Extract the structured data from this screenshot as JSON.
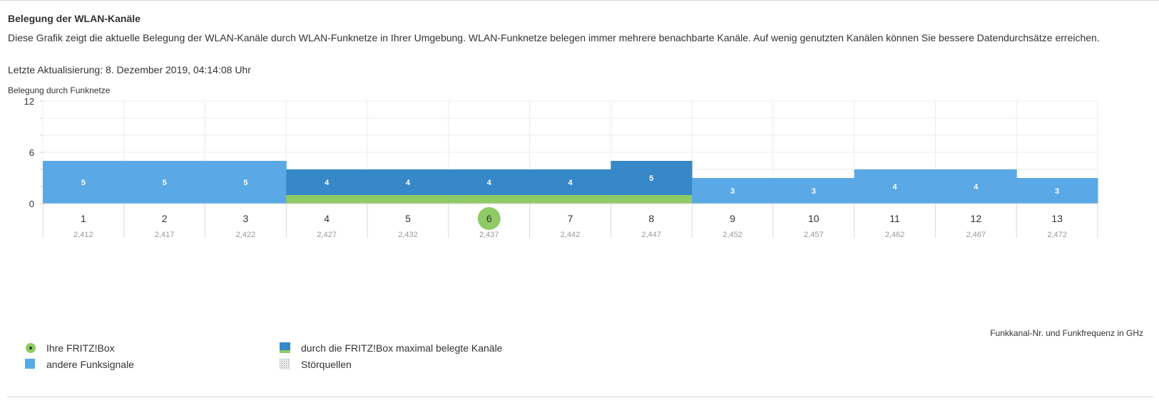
{
  "page": {
    "title": "Belegung der WLAN-Kanäle",
    "description": "Diese Grafik zeigt die aktuelle Belegung der WLAN-Kanäle durch WLAN-Funknetze in Ihrer Umgebung. WLAN-Funknetze belegen immer mehrere benachbarte Kanäle. Auf wenig genutzten Kanälen können Sie bessere Datendurchsätze erreichen.",
    "last_updated": "Letzte Aktualisierung: 8. Dezember 2019, 04:14:08 Uhr"
  },
  "chart_data": {
    "type": "bar",
    "ylabel": "Belegung durch Funknetze",
    "xlabel": "Funkkanal-Nr. und Funkfrequenz in GHz",
    "ylim": [
      0,
      12
    ],
    "yticks": [
      0,
      6,
      12
    ],
    "categories": [
      "1",
      "2",
      "3",
      "4",
      "5",
      "6",
      "7",
      "8",
      "9",
      "10",
      "11",
      "12",
      "13"
    ],
    "frequencies": [
      "2,412",
      "2,417",
      "2,422",
      "2,427",
      "2,432",
      "2,437",
      "2,442",
      "2,447",
      "2,452",
      "2,457",
      "2,462",
      "2,467",
      "2,472"
    ],
    "values": [
      5,
      5,
      5,
      4,
      4,
      4,
      4,
      5,
      3,
      3,
      4,
      4,
      3
    ],
    "fritzbox_channel": "6",
    "fritzbox_occupied_channels": [
      "4",
      "5",
      "6",
      "7",
      "8"
    ],
    "colors": {
      "other_signals": "#5aa9e6",
      "fritzbox_occupied": "#3788c8",
      "fritzbox_marker": "#8ecb66",
      "fritzbox_band": "#8ecb66"
    }
  },
  "legend": {
    "items": [
      {
        "label": "Ihre FRITZ!Box",
        "icon": "fritzbox-dot-icon"
      },
      {
        "label": "andere Funksignale",
        "icon": "blue-square-icon"
      },
      {
        "label": "durch die FRITZ!Box maximal belegte Kanäle",
        "icon": "dark-blue-green-square-icon"
      },
      {
        "label": "Störquellen",
        "icon": "hatched-square-icon"
      }
    ]
  }
}
